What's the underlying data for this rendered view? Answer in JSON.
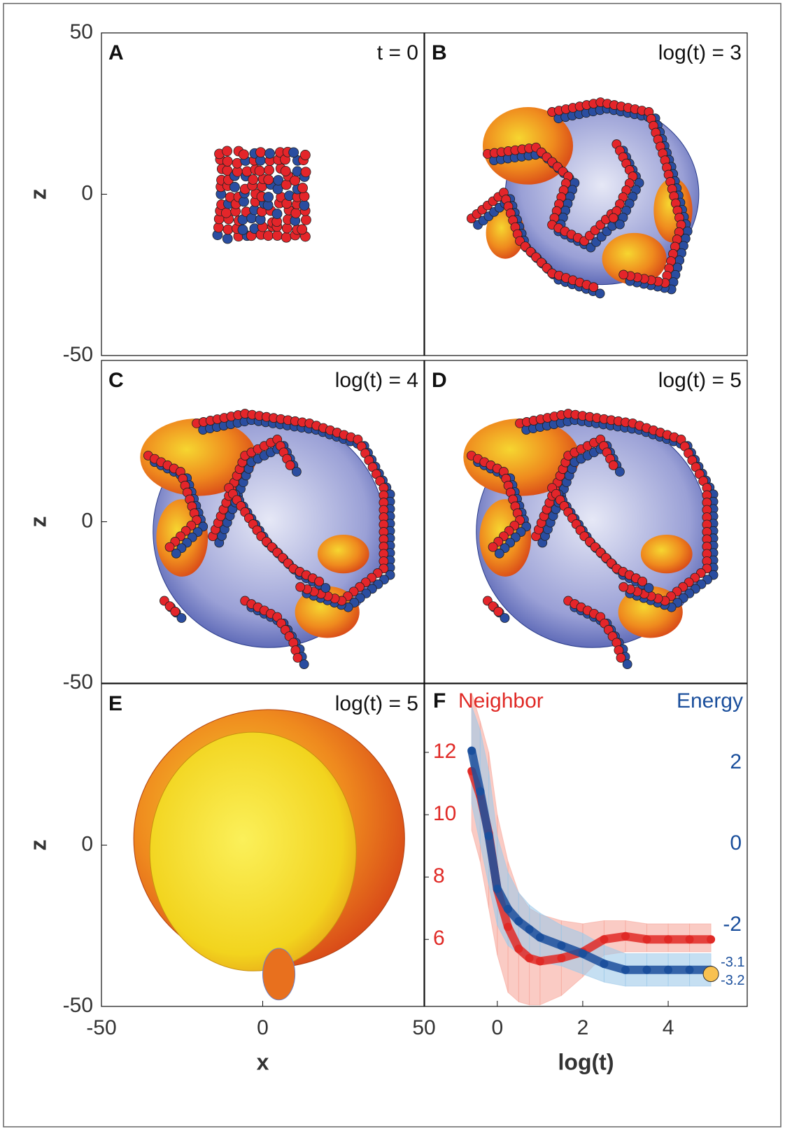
{
  "chart_data": [
    {
      "type": "snapshot",
      "label": "A",
      "time_label": "t = 0",
      "xlim": [
        -50,
        50
      ],
      "ylim": [
        -50,
        50
      ],
      "yticks": [
        -50,
        0,
        50
      ],
      "ylabel": "z"
    },
    {
      "type": "snapshot",
      "label": "B",
      "time_label": "log(t) = 3",
      "xlim": [
        -50,
        50
      ],
      "ylim": [
        -50,
        50
      ]
    },
    {
      "type": "snapshot",
      "label": "C",
      "time_label": "log(t) = 4",
      "xlim": [
        -50,
        50
      ],
      "ylim": [
        -50,
        50
      ],
      "yticks": [
        -50,
        0
      ],
      "ylabel": "z"
    },
    {
      "type": "snapshot",
      "label": "D",
      "time_label": "log(t) = 5",
      "xlim": [
        -50,
        50
      ],
      "ylim": [
        -50,
        50
      ]
    },
    {
      "type": "snapshot",
      "label": "E",
      "time_label": "log(t) = 5",
      "xlim": [
        -50,
        50
      ],
      "ylim": [
        -50,
        50
      ],
      "xticks": [
        -50,
        0,
        50
      ],
      "yticks": [
        -50,
        0
      ],
      "xlabel": "x",
      "ylabel": "z"
    },
    {
      "type": "line",
      "label": "F",
      "x": [
        -0.6,
        -0.4,
        -0.2,
        0,
        0.25,
        0.5,
        0.75,
        1,
        1.5,
        2,
        2.5,
        3,
        3.5,
        4,
        4.5,
        5
      ],
      "xlim": [
        -1.7,
        5.85
      ],
      "xticks": [
        0,
        2,
        4
      ],
      "xlabel": "log(t)",
      "ylim": [
        3.85,
        14.2
      ],
      "yticks": [
        6,
        8,
        10,
        12
      ],
      "y2lim": [
        -4,
        3.95
      ],
      "y2ticks": [
        -2,
        0,
        2
      ],
      "series": [
        {
          "name": "Neighbor",
          "color": "#e02a26",
          "band_color": "#f7a99c",
          "values": [
            11.4,
            10.6,
            9.4,
            7.6,
            6.4,
            5.7,
            5.4,
            5.3,
            5.4,
            5.6,
            6.0,
            6.1,
            6.0,
            6.0,
            6.0,
            6.0
          ],
          "lower": [
            9.5,
            8.5,
            7.0,
            5.5,
            4.3,
            4.0,
            3.9,
            3.9,
            4.2,
            4.8,
            5.5,
            5.6,
            5.6,
            5.6,
            5.6,
            5.6
          ],
          "upper": [
            13.9,
            13.0,
            12.0,
            10.0,
            8.5,
            7.5,
            7.0,
            6.8,
            6.6,
            6.5,
            6.6,
            6.6,
            6.5,
            6.5,
            6.5,
            6.5
          ]
        },
        {
          "name": "Energy",
          "axis": "y2",
          "color": "#1b4f9c",
          "band_color": "#9ecae9",
          "values": [
            2.3,
            1.3,
            0.2,
            -1.1,
            -1.6,
            -1.9,
            -2.1,
            -2.3,
            -2.5,
            -2.7,
            -2.95,
            -3.1,
            -3.1,
            -3.1,
            -3.1,
            -3.1
          ],
          "lower": [
            1.0,
            0.0,
            -1.0,
            -2.0,
            -2.5,
            -2.7,
            -2.8,
            -2.9,
            -3.0,
            -3.2,
            -3.4,
            -3.5,
            -3.5,
            -3.5,
            -3.5,
            -3.5
          ],
          "upper": [
            3.4,
            2.8,
            1.8,
            0.2,
            -0.7,
            -1.2,
            -1.5,
            -1.7,
            -2.0,
            -2.2,
            -2.5,
            -2.7,
            -2.7,
            -2.7,
            -2.7,
            -2.7
          ]
        }
      ],
      "annotations": [
        {
          "x": 5,
          "y": -3.1,
          "text": "-3.1",
          "axis": "y2"
        },
        {
          "x": 5,
          "y": -3.2,
          "text": "-3.2",
          "axis": "y2",
          "marker_color": "#f8c150"
        }
      ]
    }
  ]
}
